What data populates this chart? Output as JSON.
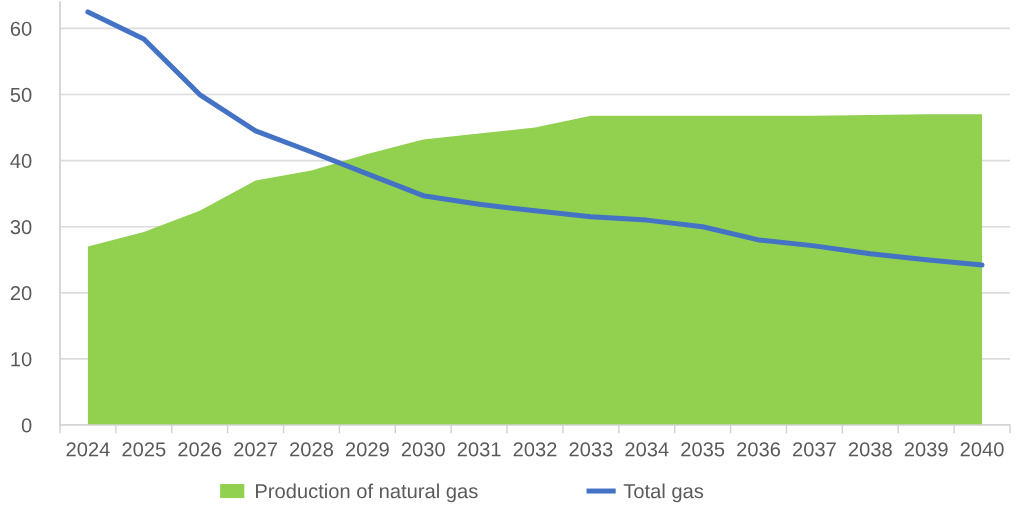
{
  "chart_data": {
    "type": "area",
    "categories": [
      "2024",
      "2025",
      "2026",
      "2027",
      "2028",
      "2029",
      "2030",
      "2031",
      "2032",
      "2033",
      "2034",
      "2035",
      "2036",
      "2037",
      "2038",
      "2039",
      "2040"
    ],
    "series": [
      {
        "name": "Production of natural gas",
        "type": "area",
        "color": "#92d050",
        "values": [
          27.0,
          29.2,
          32.4,
          37.0,
          38.5,
          41.0,
          43.2,
          44.1,
          45.0,
          46.8,
          46.8,
          46.8,
          46.8,
          46.8,
          46.9,
          47.0,
          47.0
        ]
      },
      {
        "name": "Total gas",
        "type": "line",
        "color": "#4472c4",
        "values": [
          62.5,
          58.4,
          50.0,
          44.5,
          41.3,
          38.0,
          34.7,
          33.4,
          32.4,
          31.5,
          31.0,
          30.0,
          28.0,
          27.1,
          25.9,
          25.0,
          24.2
        ]
      }
    ],
    "ylim": [
      0,
      64
    ],
    "yticks": [
      0,
      10,
      20,
      30,
      40,
      50,
      60
    ],
    "grid": "y",
    "legend": "bottom"
  }
}
